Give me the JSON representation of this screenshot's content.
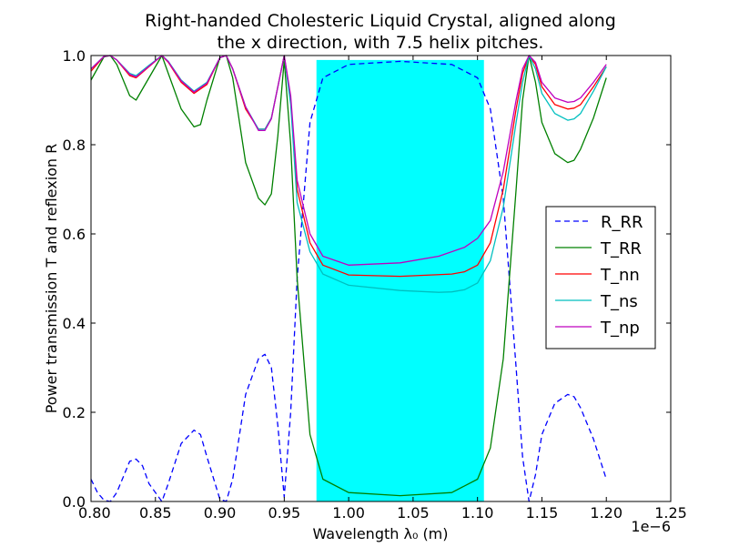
{
  "chart_data": {
    "type": "line",
    "title_line1": "Right-handed Cholesteric Liquid Crystal, aligned along",
    "title_line2": "the x direction, with 7.5 helix pitches.",
    "xlabel": "Wavelength λ₀ (m)",
    "ylabel": "Power transmission T and reflexion R",
    "x_offset_label": "1e−6",
    "xlim": [
      0.8,
      1.25
    ],
    "ylim": [
      0.0,
      1.0
    ],
    "x_ticks": [
      "0.80",
      "0.85",
      "0.90",
      "0.95",
      "1.00",
      "1.05",
      "1.10",
      "1.15",
      "1.20",
      "1.25"
    ],
    "y_ticks": [
      "0.0",
      "0.2",
      "0.4",
      "0.6",
      "0.8",
      "1.0"
    ],
    "bandgap": {
      "x_start": 0.975,
      "x_end": 1.105,
      "y_top": 0.99,
      "color": "#00ffff"
    },
    "legend_position": "center-right",
    "grid": false,
    "series": [
      {
        "name": "R_RR",
        "color": "#0000ff",
        "style": "dashed",
        "x": [
          0.8,
          0.805,
          0.81,
          0.815,
          0.82,
          0.83,
          0.835,
          0.84,
          0.845,
          0.855,
          0.86,
          0.87,
          0.88,
          0.885,
          0.89,
          0.9,
          0.905,
          0.91,
          0.92,
          0.93,
          0.935,
          0.94,
          0.945,
          0.95,
          0.955,
          0.96,
          0.97,
          0.98,
          1.0,
          1.04,
          1.08,
          1.1,
          1.11,
          1.12,
          1.13,
          1.135,
          1.14,
          1.145,
          1.15,
          1.16,
          1.17,
          1.175,
          1.18,
          1.19,
          1.2
        ],
        "y": [
          0.05,
          0.02,
          0.003,
          0.0,
          0.02,
          0.09,
          0.095,
          0.08,
          0.04,
          0.0,
          0.04,
          0.13,
          0.16,
          0.15,
          0.1,
          0.005,
          0.0,
          0.05,
          0.24,
          0.32,
          0.33,
          0.3,
          0.17,
          0.01,
          0.2,
          0.5,
          0.85,
          0.95,
          0.98,
          0.987,
          0.98,
          0.95,
          0.88,
          0.68,
          0.3,
          0.1,
          0.0,
          0.06,
          0.15,
          0.22,
          0.24,
          0.235,
          0.21,
          0.14,
          0.05
        ]
      },
      {
        "name": "T_RR",
        "color": "#008000",
        "style": "solid",
        "x": [
          0.8,
          0.81,
          0.815,
          0.82,
          0.83,
          0.835,
          0.845,
          0.855,
          0.86,
          0.87,
          0.88,
          0.885,
          0.89,
          0.9,
          0.905,
          0.91,
          0.92,
          0.93,
          0.935,
          0.94,
          0.945,
          0.95,
          0.955,
          0.96,
          0.97,
          0.98,
          1.0,
          1.04,
          1.08,
          1.1,
          1.11,
          1.12,
          1.13,
          1.135,
          1.14,
          1.145,
          1.15,
          1.16,
          1.17,
          1.175,
          1.18,
          1.19,
          1.2
        ],
        "y": [
          0.945,
          0.997,
          1.0,
          0.98,
          0.91,
          0.9,
          0.95,
          1.0,
          0.96,
          0.88,
          0.84,
          0.845,
          0.9,
          0.995,
          1.0,
          0.95,
          0.76,
          0.68,
          0.665,
          0.69,
          0.82,
          0.99,
          0.8,
          0.5,
          0.15,
          0.05,
          0.02,
          0.013,
          0.02,
          0.05,
          0.12,
          0.32,
          0.7,
          0.9,
          1.0,
          0.94,
          0.85,
          0.78,
          0.76,
          0.765,
          0.79,
          0.86,
          0.95
        ]
      },
      {
        "name": "T_nn",
        "color": "#ff0000",
        "style": "solid",
        "x": [
          0.8,
          0.81,
          0.815,
          0.82,
          0.83,
          0.835,
          0.845,
          0.855,
          0.86,
          0.87,
          0.88,
          0.89,
          0.9,
          0.905,
          0.91,
          0.92,
          0.93,
          0.935,
          0.94,
          0.945,
          0.95,
          0.955,
          0.96,
          0.97,
          0.98,
          1.0,
          1.04,
          1.08,
          1.09,
          1.1,
          1.11,
          1.12,
          1.13,
          1.135,
          1.14,
          1.145,
          1.15,
          1.16,
          1.17,
          1.175,
          1.18,
          1.19,
          1.2
        ],
        "y": [
          0.965,
          0.998,
          1.0,
          0.99,
          0.955,
          0.95,
          0.975,
          1.0,
          0.985,
          0.94,
          0.915,
          0.935,
          0.995,
          1.0,
          0.97,
          0.88,
          0.835,
          0.835,
          0.86,
          0.93,
          1.0,
          0.9,
          0.7,
          0.58,
          0.53,
          0.508,
          0.505,
          0.51,
          0.515,
          0.53,
          0.58,
          0.7,
          0.88,
          0.96,
          1.0,
          0.98,
          0.93,
          0.89,
          0.88,
          0.882,
          0.89,
          0.93,
          0.975
        ]
      },
      {
        "name": "T_ns",
        "color": "#00bfbf",
        "style": "solid",
        "x": [
          0.8,
          0.81,
          0.815,
          0.82,
          0.83,
          0.835,
          0.845,
          0.855,
          0.86,
          0.87,
          0.88,
          0.89,
          0.9,
          0.905,
          0.91,
          0.92,
          0.93,
          0.935,
          0.94,
          0.945,
          0.95,
          0.955,
          0.96,
          0.97,
          0.98,
          1.0,
          1.04,
          1.07,
          1.08,
          1.09,
          1.1,
          1.11,
          1.12,
          1.13,
          1.135,
          1.14,
          1.145,
          1.15,
          1.16,
          1.17,
          1.175,
          1.18,
          1.19,
          1.2
        ],
        "y": [
          0.97,
          0.998,
          1.0,
          0.99,
          0.96,
          0.955,
          0.978,
          1.0,
          0.987,
          0.945,
          0.92,
          0.94,
          0.995,
          1.0,
          0.97,
          0.885,
          0.835,
          0.835,
          0.86,
          0.93,
          1.0,
          0.89,
          0.67,
          0.56,
          0.51,
          0.485,
          0.473,
          0.469,
          0.47,
          0.475,
          0.49,
          0.54,
          0.66,
          0.85,
          0.94,
          1.0,
          0.97,
          0.915,
          0.87,
          0.855,
          0.858,
          0.87,
          0.92,
          0.975
        ]
      },
      {
        "name": "T_np",
        "color": "#bf00bf",
        "style": "solid",
        "x": [
          0.8,
          0.81,
          0.815,
          0.82,
          0.83,
          0.835,
          0.845,
          0.855,
          0.86,
          0.87,
          0.88,
          0.89,
          0.9,
          0.905,
          0.91,
          0.92,
          0.93,
          0.935,
          0.94,
          0.945,
          0.95,
          0.955,
          0.96,
          0.97,
          0.98,
          1.0,
          1.04,
          1.07,
          1.09,
          1.1,
          1.11,
          1.12,
          1.13,
          1.135,
          1.14,
          1.145,
          1.15,
          1.16,
          1.17,
          1.175,
          1.18,
          1.19,
          1.2
        ],
        "y": [
          0.97,
          0.998,
          1.0,
          0.99,
          0.958,
          0.952,
          0.976,
          1.0,
          0.986,
          0.943,
          0.918,
          0.938,
          0.995,
          1.0,
          0.97,
          0.885,
          0.832,
          0.832,
          0.858,
          0.93,
          1.0,
          0.91,
          0.72,
          0.6,
          0.55,
          0.53,
          0.535,
          0.55,
          0.57,
          0.59,
          0.63,
          0.74,
          0.9,
          0.97,
          1.0,
          0.985,
          0.94,
          0.905,
          0.895,
          0.897,
          0.905,
          0.94,
          0.98
        ]
      }
    ]
  }
}
